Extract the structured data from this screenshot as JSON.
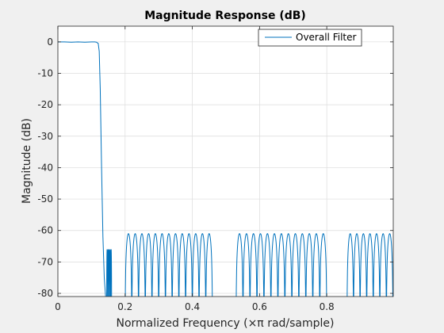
{
  "chart_data": {
    "type": "line",
    "title": "Magnitude Response (dB)",
    "xlabel": "Normalized Frequency (×π rad/sample)",
    "ylabel": "Magnitude (dB)",
    "xlim": [
      0,
      0.9978
    ],
    "ylim": [
      -81,
      5
    ],
    "xticks": [
      0,
      0.2,
      0.4,
      0.6,
      0.8
    ],
    "xtick_labels": [
      "0",
      "0.2",
      "0.4",
      "0.6",
      "0.8"
    ],
    "yticks": [
      0,
      -10,
      -20,
      -30,
      -40,
      -50,
      -60,
      -70,
      -80
    ],
    "ytick_labels": [
      "0",
      "-10",
      "-20",
      "-30",
      "-40",
      "-50",
      "-60",
      "-70",
      "-80"
    ],
    "grid": true,
    "legend_position": "top-right",
    "colors": {
      "line": "#0072bd",
      "axes_bg": "#ffffff",
      "figure_bg": "#f0f0f0",
      "grid": "#dcdcdc"
    },
    "series": [
      {
        "name": "Overall Filter",
        "x": [
          0,
          0.02,
          0.04,
          0.06,
          0.08,
          0.1,
          0.11,
          0.115,
          0.12,
          0.123,
          0.126,
          0.13,
          0.134,
          0.138,
          0.142
        ],
        "y": [
          0,
          0,
          -0.1,
          0,
          -0.1,
          0,
          0,
          -0.1,
          -0.5,
          -3,
          -15,
          -40,
          -62,
          -75,
          -81
        ]
      }
    ],
    "stopband": {
      "ripple_peak_db": -61,
      "bands": [
        {
          "x_start": 0.145,
          "x_end": 0.16,
          "lobes": 5,
          "peak_db": -66
        },
        {
          "x_start": 0.2,
          "x_end": 0.46,
          "lobes": 13,
          "peak_db": -61
        },
        {
          "x_start": 0.53,
          "x_end": 0.8,
          "lobes": 13,
          "peak_db": -61
        },
        {
          "x_start": 0.86,
          "x_end": 0.997,
          "lobes": 7,
          "peak_db": -61
        }
      ]
    }
  }
}
